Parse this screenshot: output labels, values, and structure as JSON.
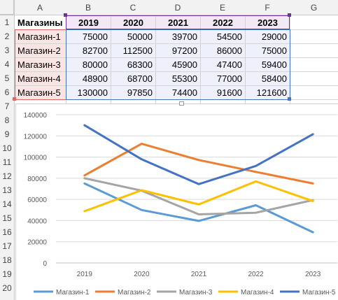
{
  "sheet": {
    "column_headers": [
      "A",
      "B",
      "C",
      "D",
      "E",
      "F",
      "G"
    ],
    "row_headers": [
      "1",
      "2",
      "3",
      "4",
      "5",
      "6",
      "7",
      "8",
      "9",
      "10",
      "11",
      "12",
      "13",
      "14",
      "15",
      "16",
      "17",
      "18",
      "19",
      "20"
    ],
    "table": {
      "header_label": "Магазины",
      "years": [
        "2019",
        "2020",
        "2021",
        "2022",
        "2023"
      ],
      "rows": [
        {
          "name": "Магазин-1",
          "values": [
            "75000",
            "50000",
            "39700",
            "54500",
            "29000"
          ]
        },
        {
          "name": "Магазин-2",
          "values": [
            "82700",
            "112500",
            "97200",
            "86000",
            "75000"
          ]
        },
        {
          "name": "Магазин-3",
          "values": [
            "80000",
            "68300",
            "45900",
            "47400",
            "59400"
          ]
        },
        {
          "name": "Магазин-4",
          "values": [
            "48900",
            "68700",
            "55300",
            "77000",
            "58400"
          ]
        },
        {
          "name": "Магазин-5",
          "values": [
            "130000",
            "97850",
            "74400",
            "91600",
            "121600"
          ]
        }
      ]
    },
    "colors": {
      "header_fill": "#f2f2f2",
      "label_range_fill": "#fbe4e4",
      "label_range_border": "#e06666",
      "value_range_fill": "#eef0fb",
      "value_range_border": "#4472c4",
      "header_range_fill": "#f3e9f6",
      "header_range_border": "#7030a0"
    }
  },
  "chart_data": {
    "type": "line",
    "categories": [
      "2019",
      "2020",
      "2021",
      "2022",
      "2023"
    ],
    "y_ticks": [
      "0",
      "20000",
      "40000",
      "60000",
      "80000",
      "100000",
      "120000",
      "140000"
    ],
    "ylim": [
      0,
      140000
    ],
    "grid": true,
    "legend": "bottom",
    "series": [
      {
        "name": "Магазин-1",
        "values": [
          75000,
          50000,
          39700,
          54500,
          29000
        ],
        "color": "#5b9bd5"
      },
      {
        "name": "Магазин-2",
        "values": [
          82700,
          112500,
          97200,
          86000,
          75000
        ],
        "color": "#ed7d31"
      },
      {
        "name": "Магазин-3",
        "values": [
          80000,
          68300,
          45900,
          47400,
          59400
        ],
        "color": "#a5a5a5"
      },
      {
        "name": "Магазин-4",
        "values": [
          48900,
          68700,
          55300,
          77000,
          58400
        ],
        "color": "#ffc000"
      },
      {
        "name": "Магазин-5",
        "values": [
          130000,
          97850,
          74400,
          91600,
          121600
        ],
        "color": "#4472c4"
      }
    ]
  }
}
